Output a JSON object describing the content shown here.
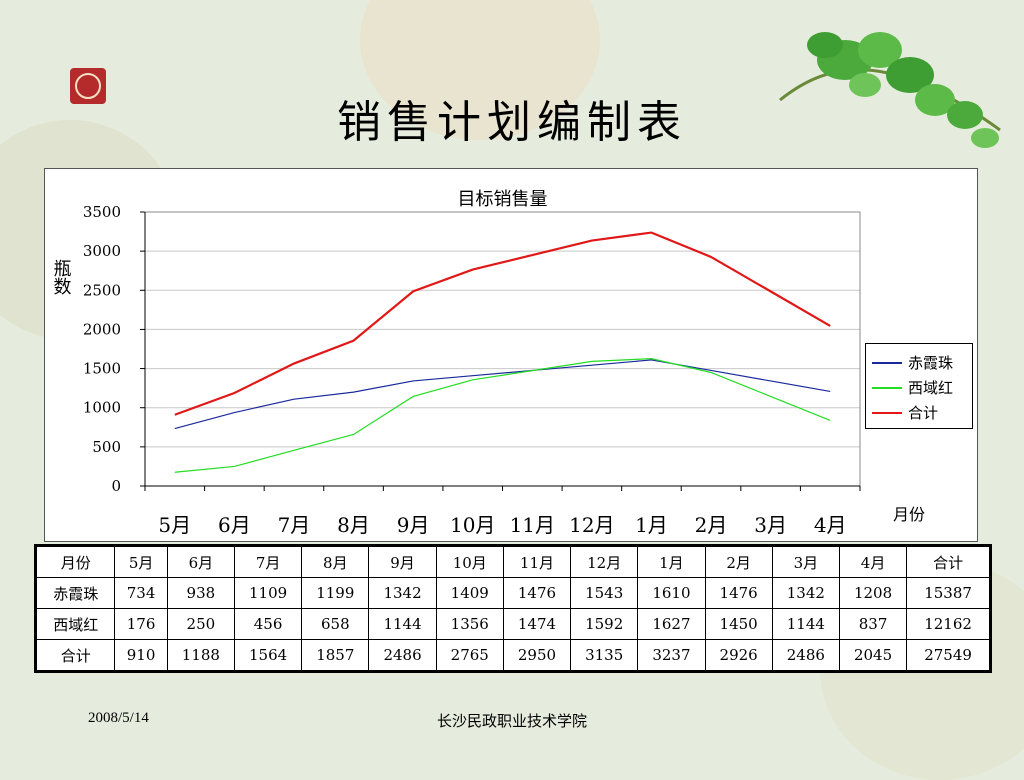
{
  "slide": {
    "title": "销售计划编制表",
    "footer_date": "2008/5/14",
    "footer_org": "长沙民政职业技术学院"
  },
  "chart_data": {
    "type": "line",
    "title": "目标销售量",
    "ylabel": "瓶数",
    "xlabel": "月份",
    "ylim": [
      0,
      3500
    ],
    "yticks": [
      0,
      500,
      1000,
      1500,
      2000,
      2500,
      3000,
      3500
    ],
    "categories": [
      "5月",
      "6月",
      "7月",
      "8月",
      "9月",
      "10月",
      "11月",
      "12月",
      "1月",
      "2月",
      "3月",
      "4月"
    ],
    "legend_position": "right",
    "series": [
      {
        "name": "赤霞珠",
        "color": "#1a2a9a",
        "values": [
          734,
          938,
          1109,
          1199,
          1342,
          1409,
          1476,
          1543,
          1610,
          1476,
          1342,
          1208
        ]
      },
      {
        "name": "西域红",
        "color": "#22dd22",
        "values": [
          176,
          250,
          456,
          658,
          1144,
          1356,
          1474,
          1592,
          1627,
          1450,
          1144,
          837
        ]
      },
      {
        "name": "合计",
        "color": "#e01818",
        "values": [
          910,
          1188,
          1564,
          1857,
          2486,
          2765,
          2950,
          3135,
          3237,
          2926,
          2486,
          2045
        ]
      }
    ]
  },
  "table": {
    "headers": [
      "月份",
      "5月",
      "6月",
      "7月",
      "8月",
      "9月",
      "10月",
      "11月",
      "12月",
      "1月",
      "2月",
      "3月",
      "4月",
      "合计"
    ],
    "rows": [
      [
        "赤霞珠",
        "734",
        "938",
        "1109",
        "1199",
        "1342",
        "1409",
        "1476",
        "1543",
        "1610",
        "1476",
        "1342",
        "1208",
        "15387"
      ],
      [
        "西域红",
        "176",
        "250",
        "456",
        "658",
        "1144",
        "1356",
        "1474",
        "1592",
        "1627",
        "1450",
        "1144",
        "837",
        "12162"
      ],
      [
        "合计",
        "910",
        "1188",
        "1564",
        "1857",
        "2486",
        "2765",
        "2950",
        "3135",
        "3237",
        "2926",
        "2486",
        "2045",
        "27549"
      ]
    ]
  }
}
